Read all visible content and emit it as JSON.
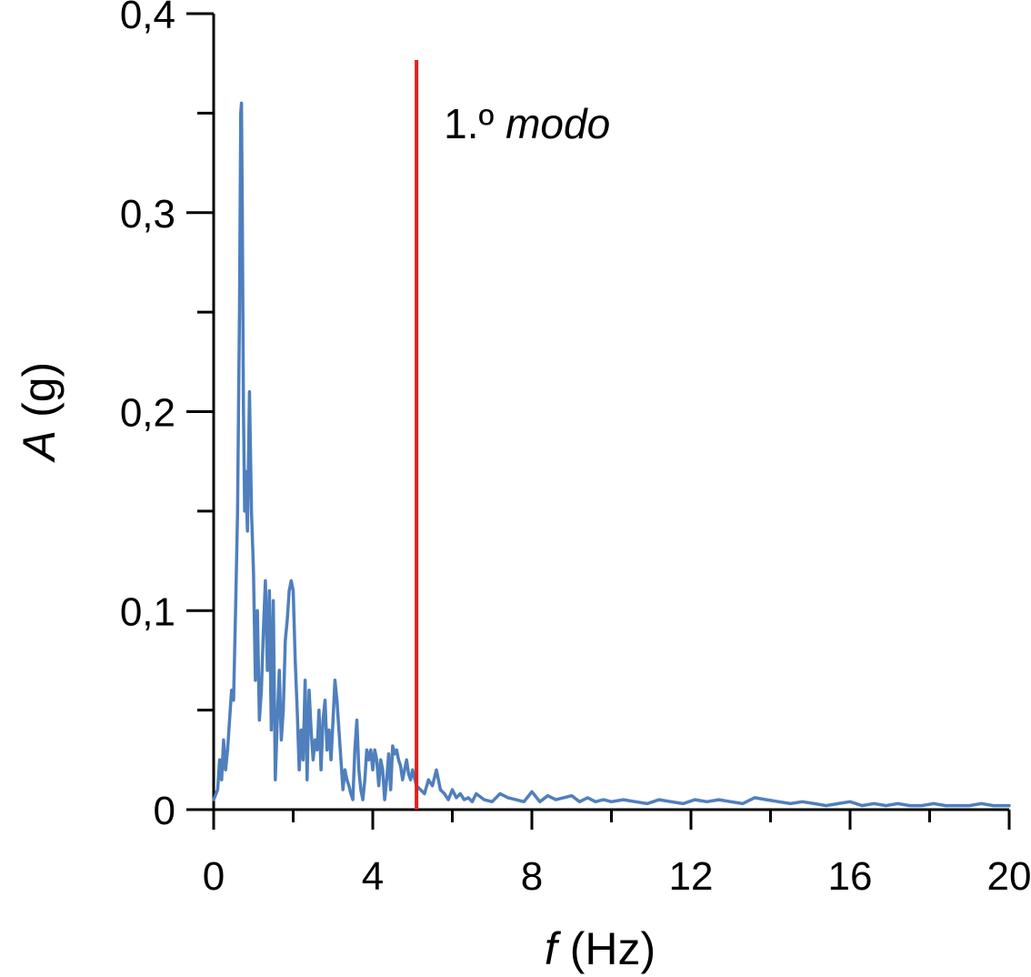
{
  "chart_data": {
    "type": "line",
    "title": "",
    "xlabel": {
      "symbol": "f",
      "unit": "(Hz)"
    },
    "ylabel": {
      "symbol": "A",
      "unit": "(g)"
    },
    "xlim": [
      0,
      20
    ],
    "ylim": [
      0,
      0.4
    ],
    "x_ticks": [
      {
        "value": 0,
        "label": "0"
      },
      {
        "value": 4,
        "label": "4"
      },
      {
        "value": 8,
        "label": "8"
      },
      {
        "value": 12,
        "label": "12"
      },
      {
        "value": 16,
        "label": "16"
      },
      {
        "value": 20,
        "label": "20"
      }
    ],
    "x_minor_ticks": [
      2,
      6,
      10,
      14,
      18
    ],
    "y_ticks": [
      {
        "value": 0,
        "label": "0"
      },
      {
        "value": 0.1,
        "label": "0,1"
      },
      {
        "value": 0.2,
        "label": "0,2"
      },
      {
        "value": 0.3,
        "label": "0,3"
      },
      {
        "value": 0.4,
        "label": "0,4"
      }
    ],
    "y_minor_ticks": [
      0.05,
      0.15,
      0.25,
      0.35
    ],
    "grid": false,
    "series": [
      {
        "color": "#4f7fbd",
        "x": [
          0,
          0.1,
          0.15,
          0.2,
          0.25,
          0.3,
          0.35,
          0.4,
          0.45,
          0.5,
          0.55,
          0.6,
          0.65,
          0.68,
          0.7,
          0.72,
          0.75,
          0.78,
          0.8,
          0.85,
          0.9,
          0.95,
          1.0,
          1.05,
          1.1,
          1.15,
          1.2,
          1.25,
          1.3,
          1.35,
          1.4,
          1.45,
          1.5,
          1.55,
          1.6,
          1.65,
          1.7,
          1.75,
          1.8,
          1.85,
          1.9,
          1.95,
          2.0,
          2.05,
          2.1,
          2.15,
          2.2,
          2.25,
          2.3,
          2.35,
          2.4,
          2.45,
          2.5,
          2.55,
          2.6,
          2.65,
          2.7,
          2.75,
          2.8,
          2.85,
          2.9,
          2.95,
          3.0,
          3.05,
          3.1,
          3.15,
          3.2,
          3.25,
          3.3,
          3.35,
          3.4,
          3.45,
          3.5,
          3.55,
          3.6,
          3.65,
          3.7,
          3.75,
          3.8,
          3.85,
          3.9,
          3.95,
          4.0,
          4.05,
          4.1,
          4.15,
          4.2,
          4.25,
          4.3,
          4.35,
          4.4,
          4.45,
          4.5,
          4.55,
          4.6,
          4.65,
          4.7,
          4.75,
          4.8,
          4.85,
          4.9,
          4.95,
          5.0,
          5.1,
          5.2,
          5.3,
          5.4,
          5.5,
          5.6,
          5.7,
          5.8,
          5.9,
          6.0,
          6.1,
          6.2,
          6.3,
          6.4,
          6.5,
          6.6,
          6.8,
          7.0,
          7.2,
          7.4,
          7.6,
          7.8,
          8.0,
          8.2,
          8.4,
          8.6,
          8.8,
          9.0,
          9.2,
          9.4,
          9.6,
          9.8,
          10.0,
          10.3,
          10.6,
          10.9,
          11.2,
          11.5,
          11.8,
          12.1,
          12.4,
          12.7,
          13.0,
          13.3,
          13.6,
          13.9,
          14.2,
          14.5,
          14.8,
          15.1,
          15.4,
          15.7,
          16.0,
          16.3,
          16.6,
          16.9,
          17.2,
          17.5,
          17.8,
          18.1,
          18.4,
          18.7,
          19.0,
          19.3,
          19.6,
          20.0
        ],
        "y": [
          0.005,
          0.01,
          0.025,
          0.015,
          0.035,
          0.02,
          0.03,
          0.045,
          0.06,
          0.055,
          0.1,
          0.15,
          0.25,
          0.35,
          0.355,
          0.3,
          0.2,
          0.15,
          0.17,
          0.14,
          0.21,
          0.15,
          0.12,
          0.065,
          0.1,
          0.045,
          0.06,
          0.09,
          0.115,
          0.07,
          0.11,
          0.04,
          0.105,
          0.015,
          0.045,
          0.07,
          0.035,
          0.05,
          0.085,
          0.095,
          0.11,
          0.115,
          0.11,
          0.075,
          0.05,
          0.02,
          0.04,
          0.025,
          0.065,
          0.015,
          0.06,
          0.04,
          0.025,
          0.035,
          0.03,
          0.05,
          0.02,
          0.045,
          0.055,
          0.03,
          0.04,
          0.025,
          0.045,
          0.065,
          0.055,
          0.04,
          0.025,
          0.01,
          0.02,
          0.015,
          0.012,
          0.008,
          0.005,
          0.03,
          0.045,
          0.02,
          0.01,
          0.005,
          0.015,
          0.03,
          0.025,
          0.03,
          0.02,
          0.03,
          0.025,
          0.012,
          0.025,
          0.02,
          0.005,
          0.015,
          0.028,
          0.01,
          0.032,
          0.028,
          0.03,
          0.025,
          0.022,
          0.015,
          0.02,
          0.025,
          0.018,
          0.015,
          0.02,
          0.012,
          0.01,
          0.008,
          0.015,
          0.012,
          0.02,
          0.01,
          0.008,
          0.005,
          0.01,
          0.006,
          0.008,
          0.005,
          0.006,
          0.004,
          0.008,
          0.005,
          0.004,
          0.008,
          0.006,
          0.005,
          0.004,
          0.009,
          0.004,
          0.007,
          0.005,
          0.006,
          0.007,
          0.004,
          0.006,
          0.004,
          0.005,
          0.004,
          0.005,
          0.004,
          0.003,
          0.005,
          0.004,
          0.003,
          0.005,
          0.004,
          0.005,
          0.004,
          0.003,
          0.006,
          0.005,
          0.004,
          0.003,
          0.004,
          0.003,
          0.002,
          0.003,
          0.004,
          0.002,
          0.003,
          0.002,
          0.003,
          0.002,
          0.002,
          0.003,
          0.002,
          0.002,
          0.002,
          0.003,
          0.002,
          0.002
        ]
      }
    ],
    "reference_line": {
      "x": 5.1,
      "color": "#e02020",
      "label_prefix": "1.º ",
      "label_italic": "modo"
    }
  }
}
